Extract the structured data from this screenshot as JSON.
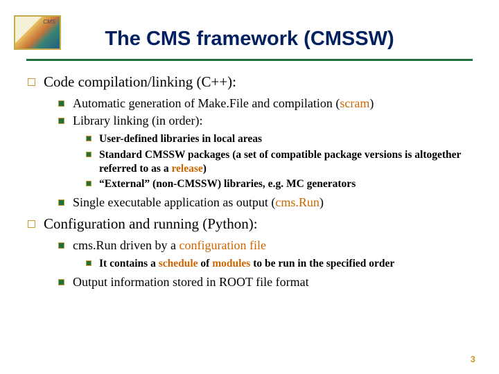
{
  "title": "The CMS framework (CMSSW)",
  "pageNumber": "3",
  "colors": {
    "titleColor": "#002060",
    "dividerColor": "#1f6f3f",
    "bulletHollow": "#c99a2a",
    "bulletSolid": "#1f6f3f",
    "highlight": "#cc6600"
  },
  "section1": {
    "heading": "Code compilation/linking (C++):",
    "item1": {
      "pre": "Automatic generation of Make.File and compilation (",
      "hl": "scram",
      "post": ")"
    },
    "item2": "Library linking (in order):",
    "sub1": "User-defined libraries in local areas",
    "sub2": {
      "pre": "Standard CMSSW packages (a set of compatible package versions is altogether referred to as a ",
      "hl": "release",
      "post": ")"
    },
    "sub3": "“External” (non-CMSSW) libraries, e.g. MC generators",
    "item3": {
      "pre": "Single executable application as output (",
      "hl": "cms.Run",
      "post": ")"
    }
  },
  "section2": {
    "heading": "Configuration and running (Python):",
    "item1": {
      "pre": "cms.Run driven by a ",
      "hl": "configuration file",
      "post": ""
    },
    "sub1": {
      "p1": "It contains a ",
      "h1": "schedule",
      "p2": " of ",
      "h2": "modules",
      "p3": " to be run in the specified order"
    },
    "item2": "Output information stored in ROOT file format"
  }
}
